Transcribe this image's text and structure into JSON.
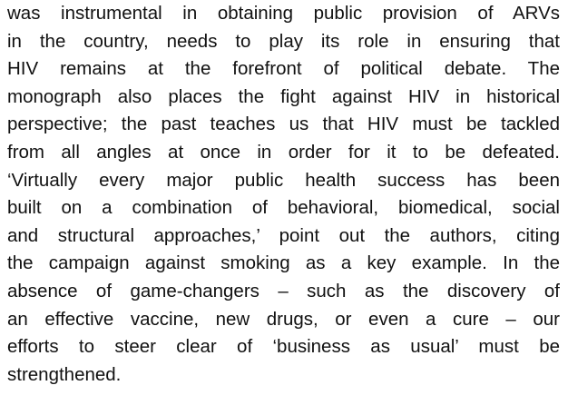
{
  "paragraph": {
    "lines": [
      "was instrumental in obtaining public provision of ARVs",
      "in the country, needs to play its role in ensuring that",
      "HIV remains at the forefront of political debate. The",
      "monograph also places the fight against HIV in historical",
      "perspective; the past teaches us that HIV must be tackled",
      "from all angles at once in order for it to be defeated.",
      "‘Virtually every major public health success has been",
      "built on a combination of behavioral, biomedical, social",
      "and structural approaches,’ point out the authors, citing",
      "the campaign against smoking as a key example. In the",
      "absence of game-changers – such as the discovery of",
      "an effective vaccine, new drugs, or even a cure – our",
      "efforts to steer clear of ‘business as usual’ must be",
      "strengthened."
    ]
  }
}
